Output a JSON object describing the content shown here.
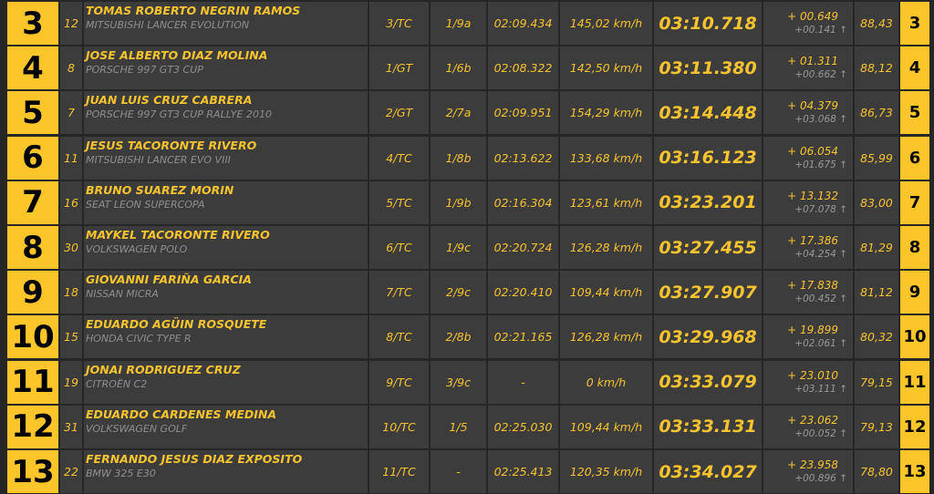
{
  "colors": {
    "accent": "#fcc62b",
    "cell": "#3c3c3c",
    "background": "#262626",
    "muted": "#8f8f8f"
  },
  "rows": [
    {
      "pos": "3",
      "num": "12",
      "driver": "TOMAS ROBERTO NEGRIN RAMOS",
      "car": "MITSUBISHI LANCER EVOLUTION",
      "class": "3/TC",
      "group": "1/9a",
      "best": "02:09.434",
      "speed": "145,02 km/h",
      "total": "03:10.718",
      "gap": "+ 00.649",
      "interval": "+00.141 ↑",
      "pct": "88,43"
    },
    {
      "pos": "4",
      "num": "8",
      "driver": "JOSE ALBERTO DIAZ MOLINA",
      "car": "PORSCHE 997 GT3 CUP",
      "class": "1/GT",
      "group": "1/6b",
      "best": "02:08.322",
      "speed": "142,50 km/h",
      "total": "03:11.380",
      "gap": "+ 01.311",
      "interval": "+00.662 ↑",
      "pct": "88,12"
    },
    {
      "pos": "5",
      "num": "7",
      "driver": "JUAN LUIS CRUZ CABRERA",
      "car": "PORSCHE 997 GT3 CUP RALLYE 2010",
      "class": "2/GT",
      "group": "2/7a",
      "best": "02:09.951",
      "speed": "154,29 km/h",
      "total": "03:14.448",
      "gap": "+ 04.379",
      "interval": "+03.068 ↑",
      "pct": "86,73"
    },
    {
      "pos": "6",
      "num": "11",
      "driver": "JESUS TACORONTE RIVERO",
      "car": "MITSUBISHI LANCER EVO VIII",
      "class": "4/TC",
      "group": "1/8b",
      "best": "02:13.622",
      "speed": "133,68 km/h",
      "total": "03:16.123",
      "gap": "+ 06.054",
      "interval": "+01.675 ↑",
      "pct": "85,99"
    },
    {
      "pos": "7",
      "num": "16",
      "driver": "BRUNO SUAREZ MORIN",
      "car": "SEAT LEON SUPERCOPA",
      "class": "5/TC",
      "group": "1/9b",
      "best": "02:16.304",
      "speed": "123,61 km/h",
      "total": "03:23.201",
      "gap": "+ 13.132",
      "interval": "+07.078 ↑",
      "pct": "83,00"
    },
    {
      "pos": "8",
      "num": "30",
      "driver": "MAYKEL TACORONTE RIVERO",
      "car": "VOLKSWAGEN POLO",
      "class": "6/TC",
      "group": "1/9c",
      "best": "02:20.724",
      "speed": "126,28 km/h",
      "total": "03:27.455",
      "gap": "+ 17.386",
      "interval": "+04.254 ↑",
      "pct": "81,29"
    },
    {
      "pos": "9",
      "num": "18",
      "driver": "GIOVANNI FARIÑA GARCIA",
      "car": "NISSAN  MICRA",
      "class": "7/TC",
      "group": "2/9c",
      "best": "02:20.410",
      "speed": "109,44 km/h",
      "total": "03:27.907",
      "gap": "+ 17.838",
      "interval": "+00.452 ↑",
      "pct": "81,12"
    },
    {
      "pos": "10",
      "num": "15",
      "driver": "EDUARDO AGÜIN ROSQUETE",
      "car": "HONDA CIVIC TYPE R",
      "class": "8/TC",
      "group": "2/8b",
      "best": "02:21.165",
      "speed": "126,28 km/h",
      "total": "03:29.968",
      "gap": "+ 19.899",
      "interval": "+02.061 ↑",
      "pct": "80,32"
    },
    {
      "pos": "11",
      "num": "19",
      "driver": "JONAI RODRIGUEZ CRUZ",
      "car": "CITROËN C2",
      "class": "9/TC",
      "group": "3/9c",
      "best": "-",
      "speed": "0 km/h",
      "total": "03:33.079",
      "gap": "+ 23.010",
      "interval": "+03.111 ↑",
      "pct": "79,15"
    },
    {
      "pos": "12",
      "num": "31",
      "driver": "EDUARDO CARDENES MEDINA",
      "car": "VOLKSWAGEN GOLF",
      "class": "10/TC",
      "group": "1/5",
      "best": "02:25.030",
      "speed": "109,44 km/h",
      "total": "03:33.131",
      "gap": "+ 23.062",
      "interval": "+00.052 ↑",
      "pct": "79,13"
    },
    {
      "pos": "13",
      "num": "22",
      "driver": "FERNANDO JESUS DIAZ EXPOSITO",
      "car": "BMW 325 E30",
      "class": "11/TC",
      "group": "-",
      "best": "02:25.413",
      "speed": "120,35 km/h",
      "total": "03:34.027",
      "gap": "+ 23.958",
      "interval": "+00.896 ↑",
      "pct": "78,80"
    }
  ]
}
